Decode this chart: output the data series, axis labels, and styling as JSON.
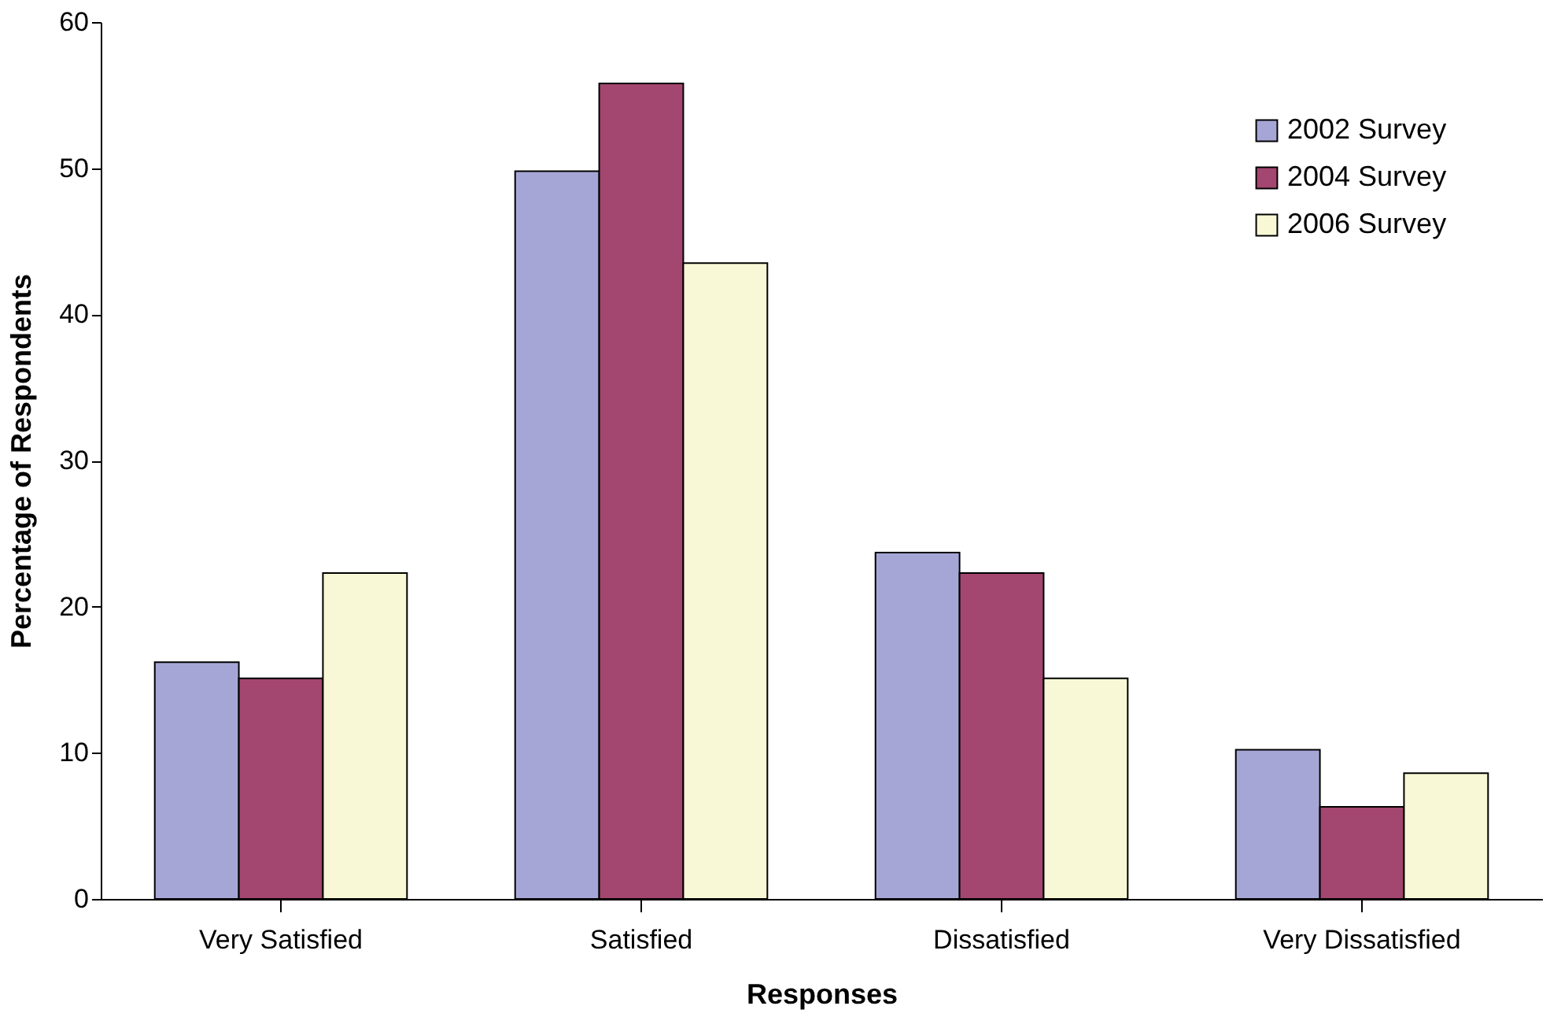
{
  "chart_data": {
    "type": "bar",
    "xlabel": "Responses",
    "ylabel": "Percentage of Respondents",
    "categories": [
      "Very Satisfied",
      "Satisfied",
      "Dissatisfied",
      "Very Dissatisfied"
    ],
    "series": [
      {
        "name": "2002 Survey",
        "color": "#a6a6d6",
        "values": [
          16.2,
          49.8,
          23.7,
          10.2
        ]
      },
      {
        "name": "2004 Survey",
        "color": "#a34670",
        "values": [
          15.1,
          55.8,
          22.3,
          6.3
        ]
      },
      {
        "name": "2006 Survey",
        "color": "#f8f8d6",
        "values": [
          22.3,
          43.5,
          15.1,
          8.6
        ]
      }
    ],
    "ylim": [
      0,
      60
    ],
    "yticks": [
      0,
      10,
      20,
      30,
      40,
      50,
      60
    ],
    "grid": false,
    "legend": "top right"
  }
}
